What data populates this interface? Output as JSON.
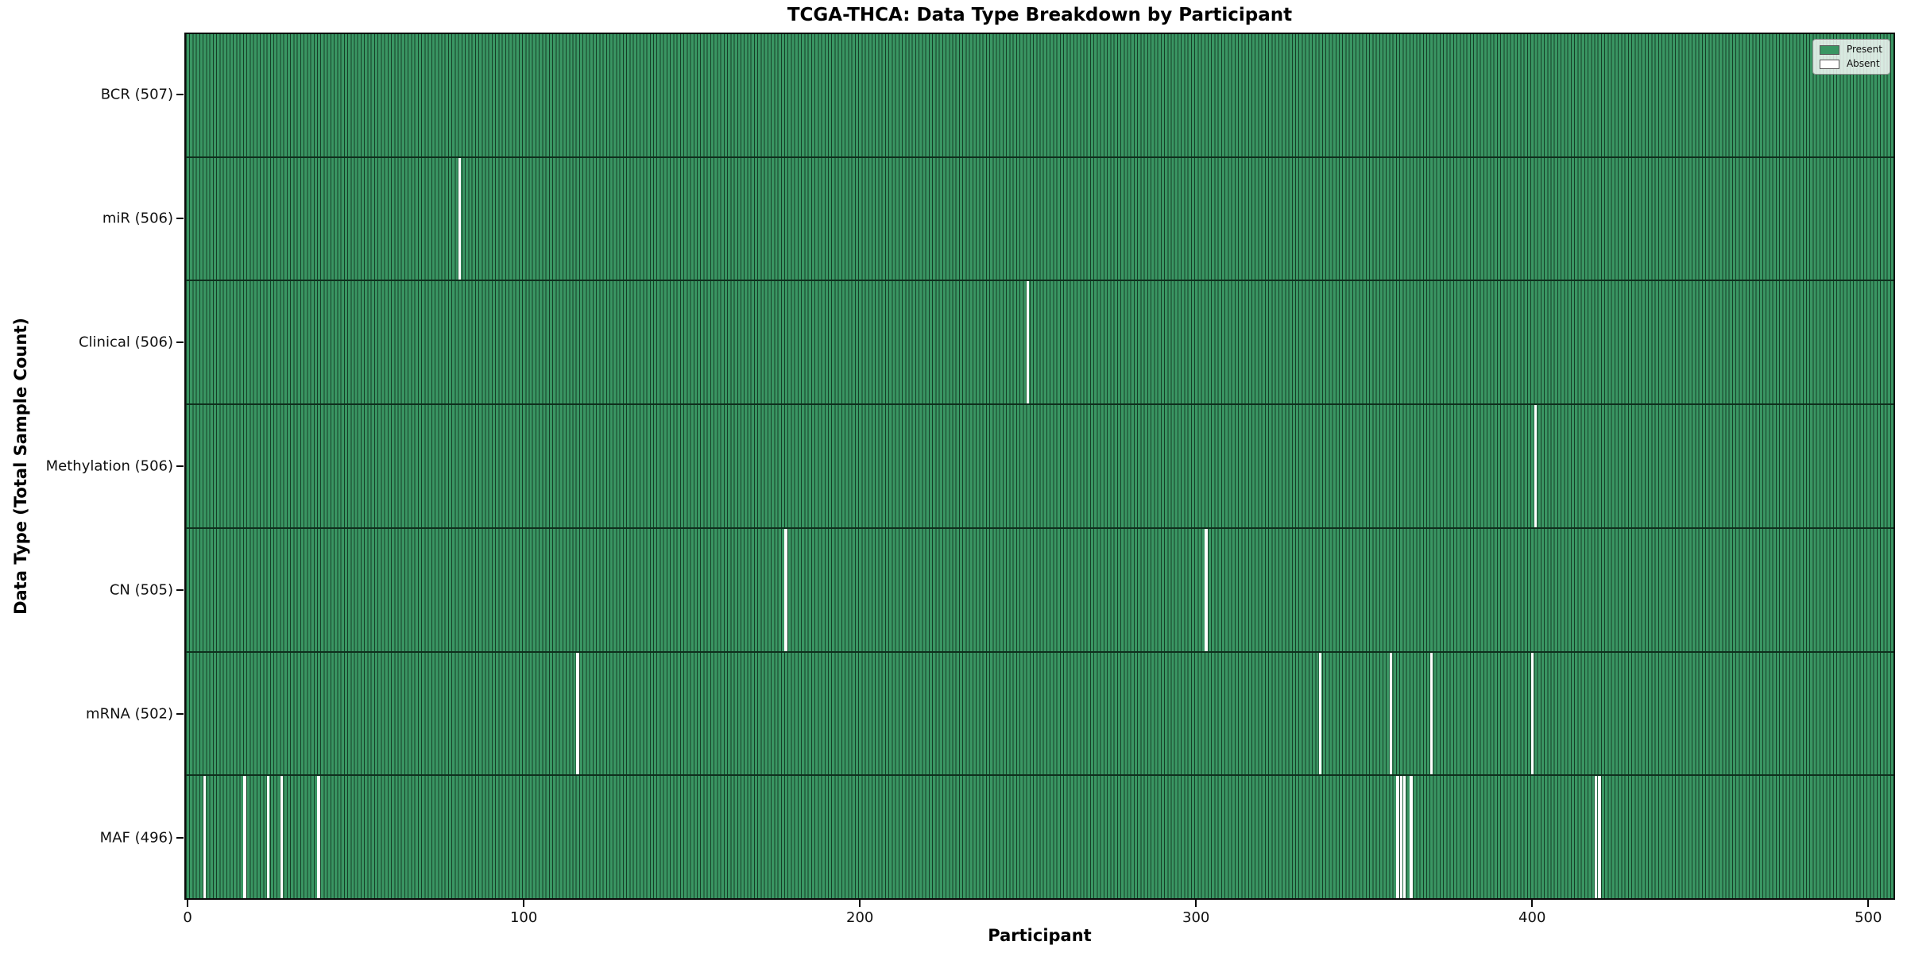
{
  "figure": {
    "background": "#ffffff"
  },
  "chart_data": {
    "type": "heatmap",
    "title": "TCGA-THCA: Data Type Breakdown by Participant",
    "xlabel": "Participant",
    "ylabel": "Data Type (Total Sample Count)",
    "x_ticks": [
      0,
      100,
      200,
      300,
      400,
      500
    ],
    "xlim": [
      -0.5,
      507.5
    ],
    "total_participants": 507,
    "grid": false,
    "legend": {
      "position": "upper-right",
      "entries": [
        {
          "label": "Present",
          "color": "#3a9663"
        },
        {
          "label": "Absent",
          "color": "#ffffff"
        }
      ]
    },
    "rows": [
      {
        "data_type": "BCR",
        "label": "BCR (507)",
        "present_count": 507,
        "absent_participants": []
      },
      {
        "data_type": "miR",
        "label": "miR (506)",
        "present_count": 506,
        "absent_participants": [
          81
        ]
      },
      {
        "data_type": "Clinical",
        "label": "Clinical (506)",
        "present_count": 506,
        "absent_participants": [
          250
        ]
      },
      {
        "data_type": "Methylation",
        "label": "Methylation (506)",
        "present_count": 506,
        "absent_participants": [
          401
        ]
      },
      {
        "data_type": "CN",
        "label": "CN (505)",
        "present_count": 505,
        "absent_participants": [
          178,
          303
        ]
      },
      {
        "data_type": "mRNA",
        "label": "mRNA (502)",
        "present_count": 502,
        "absent_participants": [
          116,
          337,
          358,
          370,
          400
        ]
      },
      {
        "data_type": "MAF",
        "label": "MAF (496)",
        "present_count": 496,
        "absent_participants": [
          5,
          17,
          24,
          28,
          39,
          360,
          361,
          362,
          364,
          419,
          420
        ]
      }
    ],
    "colors": {
      "present": "#3a9663",
      "bar_edge": "#153f27",
      "absent": "#ffffff",
      "row_divider": "#0f2f1d",
      "axes_edge": "#0a0a0a"
    }
  }
}
